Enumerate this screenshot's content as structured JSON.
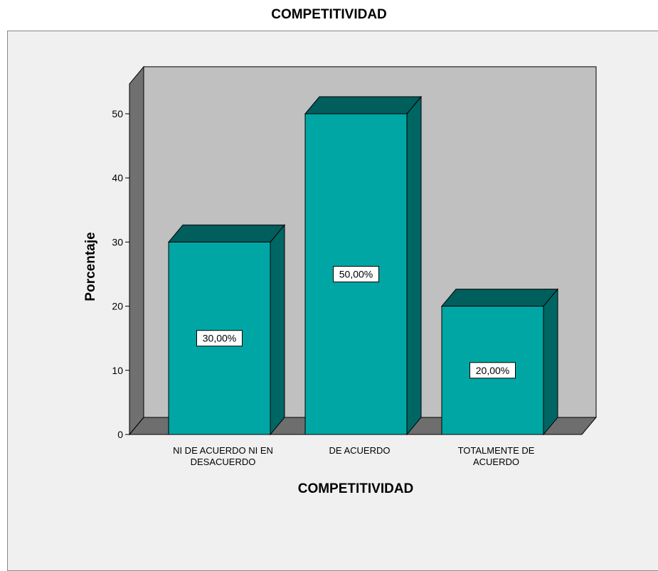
{
  "chart_data": {
    "type": "bar",
    "title": "COMPETITIVIDAD",
    "xlabel": "COMPETITIVIDAD",
    "ylabel": "Porcentaje",
    "categories": [
      [
        "NI DE ACUERDO NI EN",
        "DESACUERDO"
      ],
      [
        "DE ACUERDO"
      ],
      [
        "TOTALMENTE DE",
        "ACUERDO"
      ]
    ],
    "values": [
      30,
      50,
      20
    ],
    "data_labels": [
      "30,00%",
      "50,00%",
      "20,00%"
    ],
    "yticks": [
      0,
      10,
      20,
      30,
      40,
      50
    ],
    "ylim": [
      0,
      55
    ],
    "style": "3d",
    "grid": false,
    "colors": {
      "bar_front": "#00a6a4",
      "bar_top": "#005e5c",
      "bar_side": "#006664",
      "wall": "#c0c0c0",
      "floor": "#6e6e6e",
      "left_wall": "#707070",
      "outer_background": "#f0f0f0"
    }
  }
}
